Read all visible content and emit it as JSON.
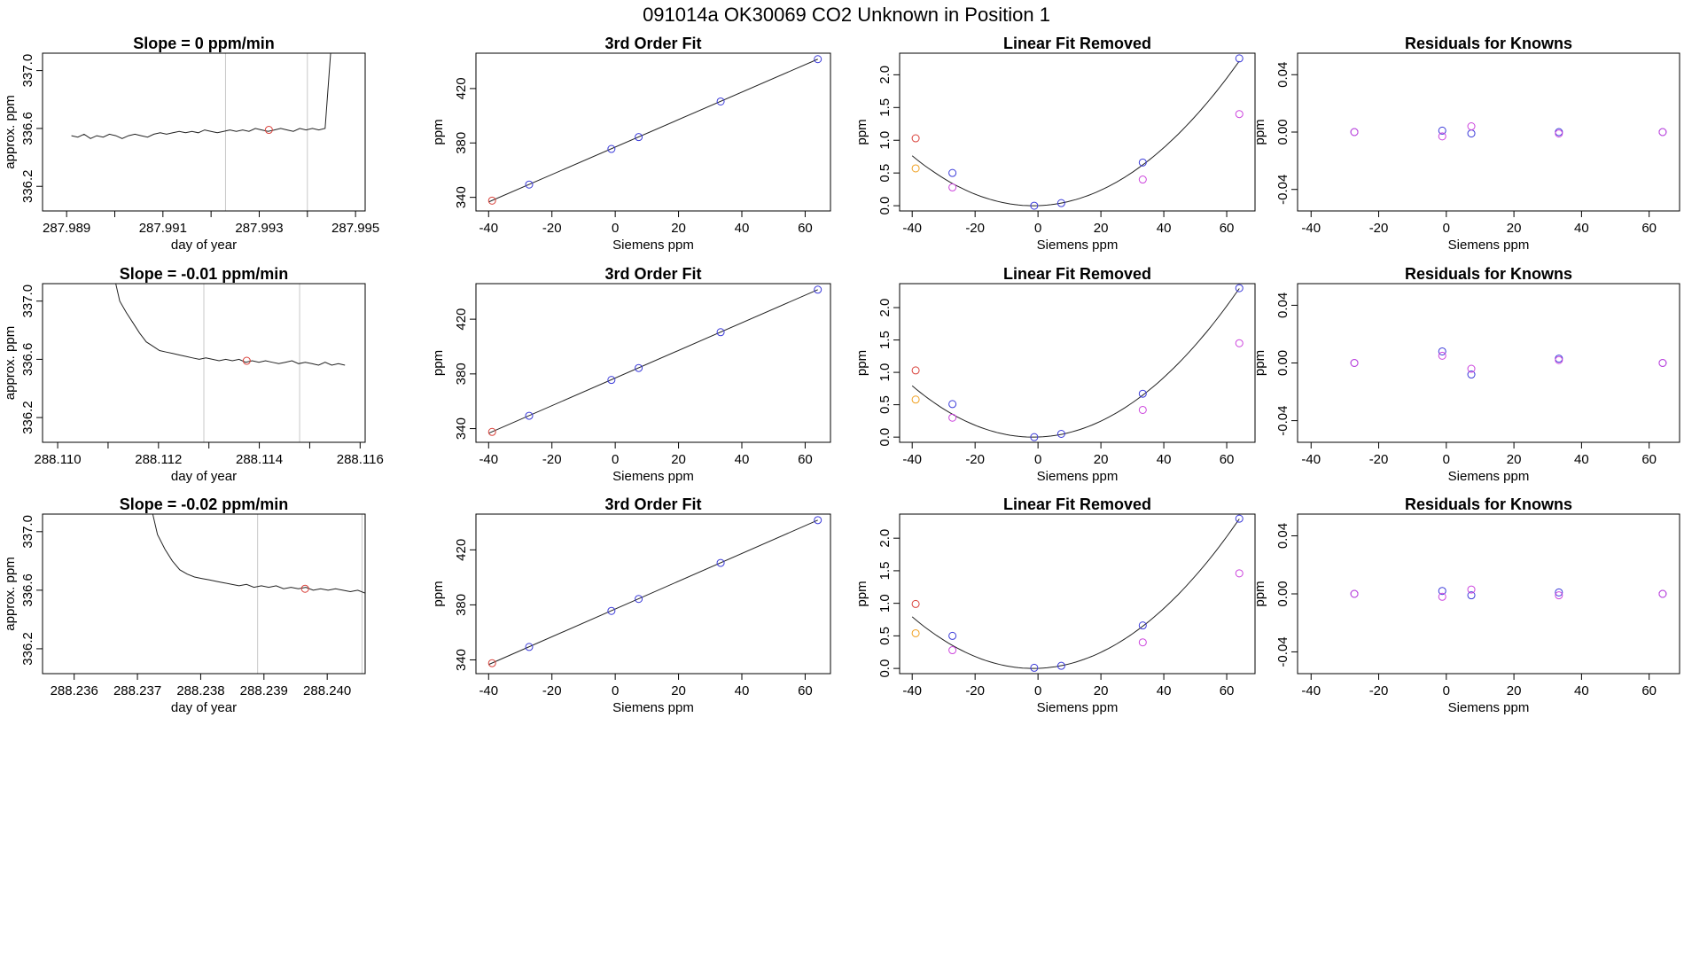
{
  "page_title": "091014a     OK30069   CO2 Unknown in Position  1",
  "chart_data": [
    {
      "type": "line",
      "panel": "timeseries",
      "row": 0,
      "title": "Slope =  0  ppm/min",
      "xlabel": "day of year",
      "ylabel": "approx. ppm",
      "xlim": [
        287.9885,
        287.9952
      ],
      "ylim": [
        336.03,
        337.12
      ],
      "xticks": [
        "287.989",
        "287.991",
        "287.993",
        "287.995"
      ],
      "xtick_values": [
        287.989,
        287.991,
        287.993,
        287.995
      ],
      "yticks": [
        "336.2",
        "336.6",
        "337.0"
      ],
      "ytick_values": [
        336.2,
        336.6,
        337.0
      ],
      "xticks_unlabeled": [
        287.99,
        287.992,
        287.994
      ],
      "vlines": [
        287.9923,
        287.994
      ],
      "series_x_range": [
        287.9891,
        287.9945
      ],
      "series_y": [
        336.55,
        336.54,
        336.56,
        336.53,
        336.55,
        336.54,
        336.56,
        336.55,
        336.53,
        336.55,
        336.56,
        336.55,
        336.54,
        336.56,
        336.57,
        336.56,
        336.57,
        336.58,
        336.57,
        336.58,
        336.57,
        336.59,
        336.58,
        336.57,
        336.58,
        336.59,
        336.58,
        336.59,
        336.58,
        336.6,
        336.59,
        336.58,
        336.59,
        336.6,
        336.59,
        336.58,
        336.6,
        336.59,
        336.6,
        336.59,
        336.6,
        337.2
      ],
      "marker": {
        "x": 287.9932,
        "y": 336.59,
        "color": "#d9413a"
      }
    },
    {
      "type": "line",
      "panel": "timeseries",
      "row": 1,
      "title": "Slope =  -0.01  ppm/min",
      "xlabel": "day of year",
      "ylabel": "approx. ppm",
      "xlim": [
        288.1097,
        288.1161
      ],
      "ylim": [
        336.03,
        337.12
      ],
      "xticks": [
        "288.110",
        "288.112",
        "288.114",
        "288.116"
      ],
      "xtick_values": [
        288.11,
        288.112,
        288.114,
        288.116
      ],
      "yticks": [
        "336.2",
        "336.6",
        "337.0"
      ],
      "ytick_values": [
        336.2,
        336.6,
        337.0
      ],
      "xticks_unlabeled": [
        288.111,
        288.113,
        288.115
      ],
      "vlines": [
        288.1129,
        288.1148
      ],
      "series_x_range": [
        288.1111,
        288.1157
      ],
      "series_y": [
        337.2,
        337.0,
        336.92,
        336.85,
        336.78,
        336.72,
        336.69,
        336.66,
        336.65,
        336.64,
        336.63,
        336.62,
        336.61,
        336.6,
        336.61,
        336.6,
        336.59,
        336.6,
        336.59,
        336.6,
        336.58,
        336.59,
        336.58,
        336.59,
        336.58,
        336.57,
        336.58,
        336.59,
        336.57,
        336.58,
        336.57,
        336.56,
        336.58,
        336.56,
        336.57,
        336.56
      ],
      "marker": {
        "x": 288.11375,
        "y": 336.59,
        "color": "#d9413a"
      }
    },
    {
      "type": "line",
      "panel": "timeseries",
      "row": 2,
      "title": "Slope =  -0.02  ppm/min",
      "xlabel": "day of year",
      "ylabel": "approx. ppm",
      "xlim": [
        288.2355,
        288.2406
      ],
      "ylim": [
        336.03,
        337.12
      ],
      "xticks": [
        "288.236",
        "288.237",
        "288.238",
        "288.239",
        "288.240"
      ],
      "xtick_values": [
        288.236,
        288.237,
        288.238,
        288.239,
        288.24
      ],
      "yticks": [
        "336.2",
        "336.6",
        "337.0"
      ],
      "ytick_values": [
        336.2,
        336.6,
        337.0
      ],
      "xticks_unlabeled": [],
      "vlines": [
        288.2389,
        288.24055
      ],
      "series_x_range": [
        288.2372,
        288.2406
      ],
      "series_y": [
        337.2,
        336.98,
        336.88,
        336.8,
        336.74,
        336.71,
        336.69,
        336.68,
        336.67,
        336.66,
        336.65,
        336.64,
        336.63,
        336.64,
        336.62,
        336.63,
        336.62,
        336.63,
        336.61,
        336.62,
        336.61,
        336.62,
        336.6,
        336.61,
        336.6,
        336.61,
        336.6,
        336.59,
        336.6,
        336.58
      ],
      "marker": {
        "x": 288.23965,
        "y": 336.61,
        "color": "#d9413a"
      }
    },
    {
      "type": "scatter",
      "panel": "fit",
      "row": 0,
      "title": "3rd Order Fit",
      "xlabel": "Siemens ppm",
      "ylabel": "ppm",
      "xlim": [
        -44,
        68
      ],
      "ylim": [
        330,
        446
      ],
      "xticks": [
        "-40",
        "-20",
        "0",
        "20",
        "40",
        "60"
      ],
      "xtick_values": [
        -40,
        -20,
        0,
        20,
        40,
        60
      ],
      "yticks": [
        "340",
        "380",
        "420"
      ],
      "ytick_values": [
        340,
        380,
        420
      ],
      "line": {
        "x1": -40,
        "y1": 336.6,
        "x2": 64,
        "y2": 441.6
      },
      "points": [
        {
          "x": -27.2,
          "y": 349.4,
          "color": "#3a3ad9"
        },
        {
          "x": -1.2,
          "y": 375.6,
          "color": "#3a3ad9"
        },
        {
          "x": 7.4,
          "y": 384.3,
          "color": "#3a3ad9"
        },
        {
          "x": 33.3,
          "y": 410.5,
          "color": "#3a3ad9"
        },
        {
          "x": 64.0,
          "y": 441.6,
          "color": "#3a3ad9"
        },
        {
          "x": -38.9,
          "y": 337.6,
          "color": "#d9413a"
        }
      ]
    },
    {
      "type": "scatter",
      "panel": "fit",
      "row": 1,
      "title": "3rd Order Fit",
      "xlabel": "Siemens ppm",
      "ylabel": "ppm",
      "xlim": [
        -44,
        68
      ],
      "ylim": [
        330,
        446
      ],
      "xticks": [
        "-40",
        "-20",
        "0",
        "20",
        "40",
        "60"
      ],
      "xtick_values": [
        -40,
        -20,
        0,
        20,
        40,
        60
      ],
      "yticks": [
        "340",
        "380",
        "420"
      ],
      "ytick_values": [
        340,
        380,
        420
      ],
      "line": {
        "x1": -40,
        "y1": 336.6,
        "x2": 64,
        "y2": 441.6
      },
      "points": [
        {
          "x": -27.2,
          "y": 349.4,
          "color": "#3a3ad9"
        },
        {
          "x": -1.2,
          "y": 375.6,
          "color": "#3a3ad9"
        },
        {
          "x": 7.4,
          "y": 384.3,
          "color": "#3a3ad9"
        },
        {
          "x": 33.3,
          "y": 410.5,
          "color": "#3a3ad9"
        },
        {
          "x": 64.0,
          "y": 441.6,
          "color": "#3a3ad9"
        },
        {
          "x": -38.9,
          "y": 337.6,
          "color": "#d9413a"
        }
      ]
    },
    {
      "type": "scatter",
      "panel": "fit",
      "row": 2,
      "title": "3rd Order Fit",
      "xlabel": "Siemens ppm",
      "ylabel": "ppm",
      "xlim": [
        -44,
        68
      ],
      "ylim": [
        330,
        446
      ],
      "xticks": [
        "-40",
        "-20",
        "0",
        "20",
        "40",
        "60"
      ],
      "xtick_values": [
        -40,
        -20,
        0,
        20,
        40,
        60
      ],
      "yticks": [
        "340",
        "380",
        "420"
      ],
      "ytick_values": [
        340,
        380,
        420
      ],
      "line": {
        "x1": -40,
        "y1": 336.6,
        "x2": 64,
        "y2": 441.6
      },
      "points": [
        {
          "x": -27.2,
          "y": 349.4,
          "color": "#3a3ad9"
        },
        {
          "x": -1.2,
          "y": 375.6,
          "color": "#3a3ad9"
        },
        {
          "x": 7.4,
          "y": 384.3,
          "color": "#3a3ad9"
        },
        {
          "x": 33.3,
          "y": 410.5,
          "color": "#3a3ad9"
        },
        {
          "x": 64.0,
          "y": 441.6,
          "color": "#3a3ad9"
        },
        {
          "x": -38.9,
          "y": 337.6,
          "color": "#d9413a"
        }
      ]
    },
    {
      "type": "scatter",
      "panel": "linear_removed",
      "row": 0,
      "title": "Linear Fit Removed",
      "xlabel": "Siemens ppm",
      "ylabel": "ppm",
      "xlim": [
        -44,
        69
      ],
      "ylim": [
        -0.08,
        2.33
      ],
      "xticks": [
        "-40",
        "-20",
        "0",
        "20",
        "40",
        "60"
      ],
      "xtick_values": [
        -40,
        -20,
        0,
        20,
        40,
        60
      ],
      "yticks": [
        "0.0",
        "0.5",
        "1.0",
        "1.5",
        "2.0"
      ],
      "ytick_values": [
        0.0,
        0.5,
        1.0,
        1.5,
        2.0
      ],
      "curve_quadratic": {
        "xmin": -40,
        "xmax": 64,
        "x0": -1.5,
        "a": 0.000515,
        "c": 0.0
      },
      "points": [
        {
          "x": -27.2,
          "y": 0.5,
          "color": "#3a3ad9"
        },
        {
          "x": -1.2,
          "y": 0.0,
          "color": "#3a3ad9"
        },
        {
          "x": 7.4,
          "y": 0.04,
          "color": "#3a3ad9"
        },
        {
          "x": 33.3,
          "y": 0.66,
          "color": "#3a3ad9"
        },
        {
          "x": 64.0,
          "y": 2.25,
          "color": "#3a3ad9"
        },
        {
          "x": -38.9,
          "y": 1.03,
          "color": "#d9413a"
        },
        {
          "x": -38.9,
          "y": 0.57,
          "color": "#f0a020"
        },
        {
          "x": -27.2,
          "y": 0.28,
          "color": "#cc44dd"
        },
        {
          "x": 33.3,
          "y": 0.4,
          "color": "#cc44dd"
        },
        {
          "x": 64.0,
          "y": 1.4,
          "color": "#cc44dd"
        }
      ]
    },
    {
      "type": "scatter",
      "panel": "linear_removed",
      "row": 1,
      "title": "Linear Fit Removed",
      "xlabel": "Siemens ppm",
      "ylabel": "ppm",
      "xlim": [
        -44,
        69
      ],
      "ylim": [
        -0.08,
        2.37
      ],
      "xticks": [
        "-40",
        "-20",
        "0",
        "20",
        "40",
        "60"
      ],
      "xtick_values": [
        -40,
        -20,
        0,
        20,
        40,
        60
      ],
      "yticks": [
        "0.0",
        "0.5",
        "1.0",
        "1.5",
        "2.0"
      ],
      "ytick_values": [
        0.0,
        0.5,
        1.0,
        1.5,
        2.0
      ],
      "curve_quadratic": {
        "xmin": -40,
        "xmax": 64,
        "x0": -1.5,
        "a": 0.000535,
        "c": 0.0
      },
      "points": [
        {
          "x": -27.2,
          "y": 0.51,
          "color": "#3a3ad9"
        },
        {
          "x": -1.2,
          "y": 0.0,
          "color": "#3a3ad9"
        },
        {
          "x": 7.4,
          "y": 0.05,
          "color": "#3a3ad9"
        },
        {
          "x": 33.3,
          "y": 0.67,
          "color": "#3a3ad9"
        },
        {
          "x": 64.0,
          "y": 2.3,
          "color": "#3a3ad9"
        },
        {
          "x": -38.9,
          "y": 1.03,
          "color": "#d9413a"
        },
        {
          "x": -38.9,
          "y": 0.58,
          "color": "#f0a020"
        },
        {
          "x": -27.2,
          "y": 0.3,
          "color": "#cc44dd"
        },
        {
          "x": 33.3,
          "y": 0.42,
          "color": "#cc44dd"
        },
        {
          "x": 64.0,
          "y": 1.45,
          "color": "#cc44dd"
        }
      ]
    },
    {
      "type": "scatter",
      "panel": "linear_removed",
      "row": 2,
      "title": "Linear Fit Removed",
      "xlabel": "Siemens ppm",
      "ylabel": "ppm",
      "xlim": [
        -44,
        69
      ],
      "ylim": [
        -0.08,
        2.37
      ],
      "xticks": [
        "-40",
        "-20",
        "0",
        "20",
        "40",
        "60"
      ],
      "xtick_values": [
        -40,
        -20,
        0,
        20,
        40,
        60
      ],
      "yticks": [
        "0.0",
        "0.5",
        "1.0",
        "1.5",
        "2.0"
      ],
      "ytick_values": [
        0.0,
        0.5,
        1.0,
        1.5,
        2.0
      ],
      "curve_quadratic": {
        "xmin": -40,
        "xmax": 64,
        "x0": -1.5,
        "a": 0.000535,
        "c": 0.0
      },
      "points": [
        {
          "x": -27.2,
          "y": 0.5,
          "color": "#3a3ad9"
        },
        {
          "x": -1.2,
          "y": 0.01,
          "color": "#3a3ad9"
        },
        {
          "x": 7.4,
          "y": 0.04,
          "color": "#3a3ad9"
        },
        {
          "x": 33.3,
          "y": 0.66,
          "color": "#3a3ad9"
        },
        {
          "x": 64.0,
          "y": 2.3,
          "color": "#3a3ad9"
        },
        {
          "x": -38.9,
          "y": 0.99,
          "color": "#d9413a"
        },
        {
          "x": -38.9,
          "y": 0.54,
          "color": "#f0a020"
        },
        {
          "x": -27.2,
          "y": 0.28,
          "color": "#cc44dd"
        },
        {
          "x": 33.3,
          "y": 0.4,
          "color": "#cc44dd"
        },
        {
          "x": 64.0,
          "y": 1.46,
          "color": "#cc44dd"
        }
      ]
    },
    {
      "type": "scatter",
      "panel": "residuals",
      "row": 0,
      "title": "Residuals for Knowns",
      "xlabel": "Siemens ppm",
      "ylabel": "ppm",
      "xlim": [
        -44,
        69
      ],
      "ylim": [
        -0.055,
        0.055
      ],
      "xticks": [
        "-40",
        "-20",
        "0",
        "20",
        "40",
        "60"
      ],
      "xtick_values": [
        -40,
        -20,
        0,
        20,
        40,
        60
      ],
      "yticks": [
        "-0.04",
        "0.00",
        "0.04"
      ],
      "ytick_values": [
        -0.04,
        0.0,
        0.04
      ],
      "points": [
        {
          "x": -27.2,
          "y": 0.0,
          "color": "#3a3ad9"
        },
        {
          "x": -1.2,
          "y": 0.001,
          "color": "#3a3ad9"
        },
        {
          "x": 7.4,
          "y": -0.001,
          "color": "#3a3ad9"
        },
        {
          "x": 33.3,
          "y": 0.0,
          "color": "#3a3ad9"
        },
        {
          "x": 64.0,
          "y": 0.0,
          "color": "#3a3ad9"
        },
        {
          "x": -27.2,
          "y": 0.0,
          "color": "#cc44dd"
        },
        {
          "x": -1.2,
          "y": -0.003,
          "color": "#cc44dd"
        },
        {
          "x": 7.4,
          "y": 0.004,
          "color": "#cc44dd"
        },
        {
          "x": 33.3,
          "y": -0.001,
          "color": "#cc44dd"
        },
        {
          "x": 64.0,
          "y": 0.0,
          "color": "#cc44dd"
        }
      ]
    },
    {
      "type": "scatter",
      "panel": "residuals",
      "row": 1,
      "title": "Residuals for Knowns",
      "xlabel": "Siemens ppm",
      "ylabel": "ppm",
      "xlim": [
        -44,
        69
      ],
      "ylim": [
        -0.055,
        0.055
      ],
      "xticks": [
        "-40",
        "-20",
        "0",
        "20",
        "40",
        "60"
      ],
      "xtick_values": [
        -40,
        -20,
        0,
        20,
        40,
        60
      ],
      "yticks": [
        "-0.04",
        "0.00",
        "0.04"
      ],
      "ytick_values": [
        -0.04,
        0.0,
        0.04
      ],
      "points": [
        {
          "x": -27.2,
          "y": 0.0,
          "color": "#3a3ad9"
        },
        {
          "x": -1.2,
          "y": 0.008,
          "color": "#3a3ad9"
        },
        {
          "x": 7.4,
          "y": -0.008,
          "color": "#3a3ad9"
        },
        {
          "x": 33.3,
          "y": 0.003,
          "color": "#3a3ad9"
        },
        {
          "x": 64.0,
          "y": 0.0,
          "color": "#3a3ad9"
        },
        {
          "x": -27.2,
          "y": 0.0,
          "color": "#cc44dd"
        },
        {
          "x": -1.2,
          "y": 0.005,
          "color": "#cc44dd"
        },
        {
          "x": 7.4,
          "y": -0.004,
          "color": "#cc44dd"
        },
        {
          "x": 33.3,
          "y": 0.002,
          "color": "#cc44dd"
        },
        {
          "x": 64.0,
          "y": 0.0,
          "color": "#cc44dd"
        }
      ]
    },
    {
      "type": "scatter",
      "panel": "residuals",
      "row": 2,
      "title": "Residuals for Knowns",
      "xlabel": "Siemens ppm",
      "ylabel": "ppm",
      "xlim": [
        -44,
        69
      ],
      "ylim": [
        -0.055,
        0.055
      ],
      "xticks": [
        "-40",
        "-20",
        "0",
        "20",
        "40",
        "60"
      ],
      "xtick_values": [
        -40,
        -20,
        0,
        20,
        40,
        60
      ],
      "yticks": [
        "-0.04",
        "0.00",
        "0.04"
      ],
      "ytick_values": [
        -0.04,
        0.0,
        0.04
      ],
      "points": [
        {
          "x": -27.2,
          "y": 0.0,
          "color": "#3a3ad9"
        },
        {
          "x": -1.2,
          "y": 0.002,
          "color": "#3a3ad9"
        },
        {
          "x": 7.4,
          "y": -0.001,
          "color": "#3a3ad9"
        },
        {
          "x": 33.3,
          "y": 0.001,
          "color": "#3a3ad9"
        },
        {
          "x": 64.0,
          "y": 0.0,
          "color": "#3a3ad9"
        },
        {
          "x": -27.2,
          "y": 0.0,
          "color": "#cc44dd"
        },
        {
          "x": -1.2,
          "y": -0.002,
          "color": "#cc44dd"
        },
        {
          "x": 7.4,
          "y": 0.003,
          "color": "#cc44dd"
        },
        {
          "x": 33.3,
          "y": -0.001,
          "color": "#cc44dd"
        },
        {
          "x": 64.0,
          "y": 0.0,
          "color": "#cc44dd"
        }
      ]
    }
  ]
}
